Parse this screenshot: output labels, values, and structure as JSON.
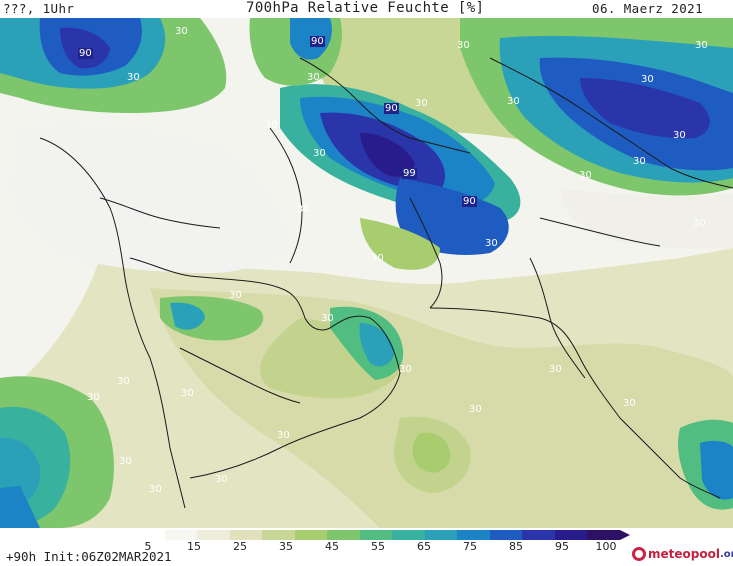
{
  "header": {
    "left": "???, 1Uhr",
    "title": "700hPa Relative Feuchte [%]",
    "date": "06. Maerz 2021"
  },
  "footer": {
    "run_info": "+90h Init:06Z02MAR2021",
    "brand_name": "meteopool",
    "brand_tld": ".org"
  },
  "legend": {
    "ticks": [
      "5",
      "15",
      "25",
      "35",
      "45",
      "55",
      "65",
      "75",
      "85",
      "95",
      "100"
    ],
    "colors": [
      "#ffffff",
      "#f7f7f2",
      "#ededd9",
      "#e1e2bc",
      "#c9d796",
      "#a7cd6f",
      "#7ec66c",
      "#52bd80",
      "#38b19e",
      "#2ba1b9",
      "#1c83c6",
      "#1f5cc1",
      "#2a35a9",
      "#281b8c",
      "#2e1065"
    ]
  },
  "contour_labels": [
    "90",
    "90",
    "90",
    "99",
    "90",
    "30",
    "30",
    "30",
    "30",
    "30",
    "30",
    "30",
    "30",
    "30",
    "30",
    "30",
    "30",
    "30",
    "30",
    "30",
    "30",
    "30",
    "30",
    "30",
    "30",
    "30",
    "30",
    "30",
    "30",
    "30",
    "30",
    "30",
    "30",
    "30",
    "30"
  ],
  "colors": {
    "very_dry": "#f2f2f1",
    "dry": "#e6e6c8",
    "moderate": "#c9d796",
    "moist": "#7ec66c",
    "wet": "#38b19e",
    "very_wet": "#1f5cc1",
    "saturated": "#2a35a9"
  }
}
